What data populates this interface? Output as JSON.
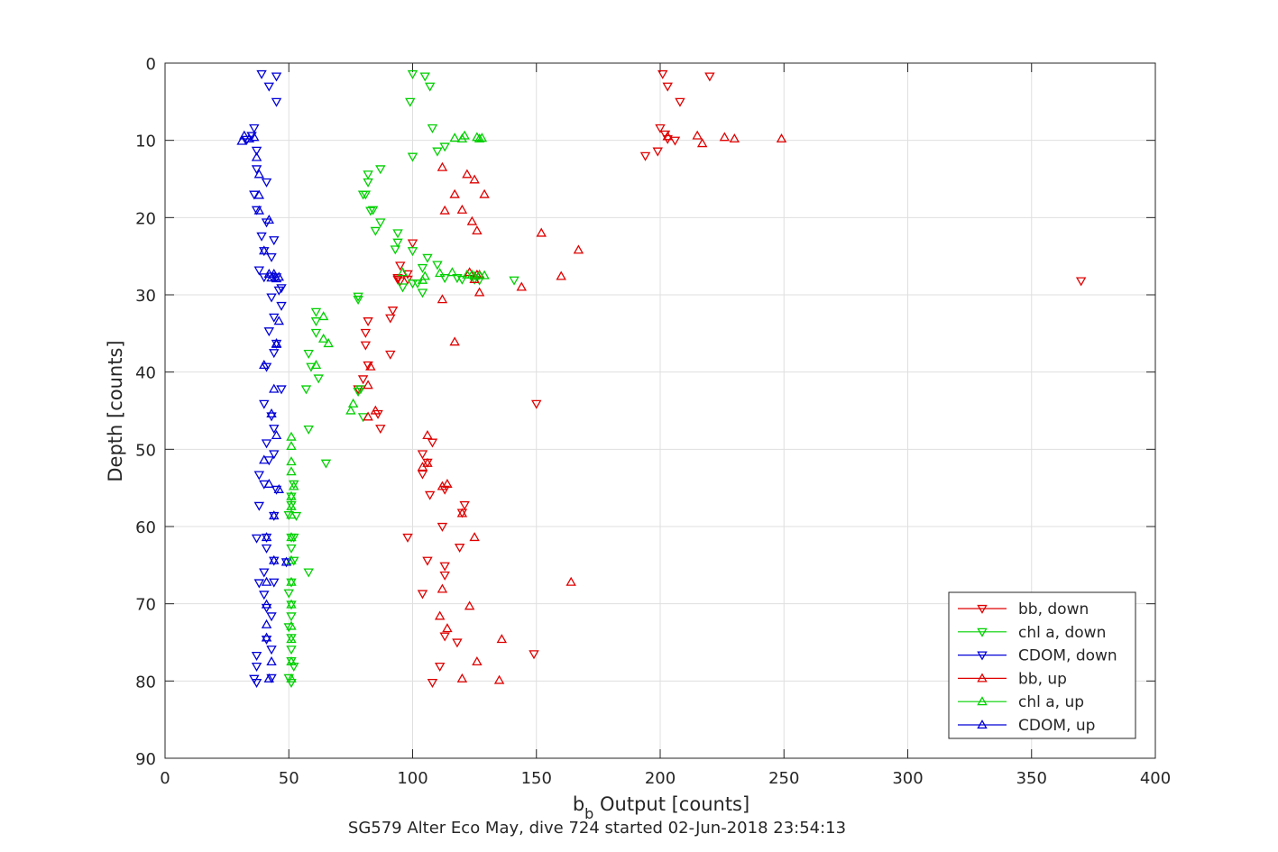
{
  "chart_data": {
    "type": "scatter",
    "xlabel": "b",
    "xlabel_sub": "b",
    "xlabel_rest": " Output [counts]",
    "ylabel": "Depth [counts]",
    "caption": "SG579 Alter Eco May, dive 724 started 02-Jun-2018 23:54:13",
    "xlim": [
      0,
      400
    ],
    "ylim": [
      0,
      90
    ],
    "y_reversed": true,
    "xticks": [
      0,
      50,
      100,
      150,
      200,
      250,
      300,
      350,
      400
    ],
    "yticks": [
      0,
      10,
      20,
      30,
      40,
      50,
      60,
      70,
      80,
      90
    ],
    "grid": true,
    "legend_position": "bottom-right",
    "series": [
      {
        "name": "bb, down",
        "color": "#e00000",
        "marker": "triangle-down",
        "points": [
          [
            201,
            1.4
          ],
          [
            220,
            1.7
          ],
          [
            203,
            3
          ],
          [
            208,
            5
          ],
          [
            200,
            8.4
          ],
          [
            202,
            9.2
          ],
          [
            203,
            9.8
          ],
          [
            206,
            10
          ],
          [
            199,
            11.4
          ],
          [
            194,
            12
          ],
          [
            94,
            28
          ],
          [
            95,
            28.2
          ],
          [
            370,
            28.2
          ],
          [
            94,
            27.8
          ],
          [
            98,
            27.3
          ],
          [
            95,
            26.2
          ],
          [
            100,
            23.3
          ],
          [
            98,
            28
          ],
          [
            92,
            32
          ],
          [
            91,
            33
          ],
          [
            82,
            33.4
          ],
          [
            81,
            34.9
          ],
          [
            81,
            36.5
          ],
          [
            91,
            37.7
          ],
          [
            82,
            39.1
          ],
          [
            80,
            40.9
          ],
          [
            78,
            42.2
          ],
          [
            86,
            45.4
          ],
          [
            87,
            47.3
          ],
          [
            108,
            49.1
          ],
          [
            106,
            51.7
          ],
          [
            104,
            53.2
          ],
          [
            107,
            55.9
          ],
          [
            98,
            61.4
          ],
          [
            106,
            64.4
          ],
          [
            113,
            65.1
          ],
          [
            104,
            68.7
          ],
          [
            113,
            74.2
          ],
          [
            118,
            75
          ],
          [
            111,
            78.1
          ],
          [
            108,
            80.2
          ],
          [
            104,
            50.6
          ],
          [
            113,
            55.2
          ],
          [
            121,
            57.2
          ],
          [
            112,
            60
          ],
          [
            119,
            62.7
          ],
          [
            113,
            66.3
          ],
          [
            120,
            58.2
          ],
          [
            150,
            44.1
          ],
          [
            149,
            76.5
          ]
        ]
      },
      {
        "name": "chl a, down",
        "color": "#00d000",
        "marker": "triangle-down",
        "points": [
          [
            100,
            1.4
          ],
          [
            105,
            1.7
          ],
          [
            107,
            3
          ],
          [
            99,
            5
          ],
          [
            108,
            8.4
          ],
          [
            100,
            12.1
          ],
          [
            110,
            11.4
          ],
          [
            113,
            10.8
          ],
          [
            87,
            13.7
          ],
          [
            82,
            14.4
          ],
          [
            82,
            15.4
          ],
          [
            80,
            17
          ],
          [
            81,
            17
          ],
          [
            83,
            19.1
          ],
          [
            84,
            19
          ],
          [
            87,
            20.6
          ],
          [
            85,
            21.7
          ],
          [
            94,
            22
          ],
          [
            94,
            23.2
          ],
          [
            100,
            24.3
          ],
          [
            93,
            24.1
          ],
          [
            106,
            25.2
          ],
          [
            110,
            26.1
          ],
          [
            104,
            26.5
          ],
          [
            113,
            27.8
          ],
          [
            118,
            27.8
          ],
          [
            100,
            28.5
          ],
          [
            96,
            29
          ],
          [
            104,
            29.7
          ],
          [
            78,
            30.2
          ],
          [
            78,
            30.6
          ],
          [
            61,
            32.2
          ],
          [
            61,
            33.4
          ],
          [
            61,
            34.9
          ],
          [
            58,
            37.6
          ],
          [
            59,
            39.3
          ],
          [
            62,
            40.8
          ],
          [
            57,
            42.2
          ],
          [
            78,
            42.5
          ],
          [
            79,
            42.2
          ],
          [
            80,
            45.8
          ],
          [
            58,
            47.4
          ],
          [
            65,
            51.8
          ],
          [
            52,
            54.5
          ],
          [
            51,
            56.1
          ],
          [
            51,
            57.2
          ],
          [
            50,
            58.5
          ],
          [
            53,
            58.6
          ],
          [
            51,
            61.4
          ],
          [
            52,
            61.4
          ],
          [
            51,
            62.8
          ],
          [
            52,
            64.4
          ],
          [
            58,
            65.9
          ],
          [
            51,
            67.2
          ],
          [
            50,
            68.6
          ],
          [
            51,
            70.1
          ],
          [
            51,
            71.6
          ],
          [
            50,
            73
          ],
          [
            51,
            74.4
          ],
          [
            51,
            75.9
          ],
          [
            51,
            77.4
          ],
          [
            52,
            78.1
          ],
          [
            50,
            79.6
          ],
          [
            51,
            80.2
          ],
          [
            125,
            28
          ],
          [
            127,
            28.1
          ],
          [
            141,
            28.1
          ],
          [
            120,
            28
          ],
          [
            102,
            28.5
          ]
        ]
      },
      {
        "name": "CDOM, down",
        "color": "#0000d8",
        "marker": "triangle-down",
        "points": [
          [
            39,
            1.4
          ],
          [
            45,
            1.7
          ],
          [
            42,
            3
          ],
          [
            45,
            5
          ],
          [
            36,
            8.4
          ],
          [
            35,
            9.4
          ],
          [
            33,
            9.9
          ],
          [
            37,
            11.3
          ],
          [
            37,
            13.7
          ],
          [
            41,
            15.4
          ],
          [
            36,
            17
          ],
          [
            37,
            19
          ],
          [
            41,
            20.6
          ],
          [
            39,
            22.4
          ],
          [
            44,
            22.9
          ],
          [
            40,
            24.3
          ],
          [
            43,
            25.1
          ],
          [
            38,
            26.8
          ],
          [
            45,
            27.7
          ],
          [
            40,
            27.7
          ],
          [
            43,
            27.6
          ],
          [
            47,
            29.1
          ],
          [
            46,
            29.4
          ],
          [
            43,
            30.3
          ],
          [
            47,
            31.4
          ],
          [
            44,
            32.9
          ],
          [
            42,
            34.7
          ],
          [
            45,
            36.3
          ],
          [
            44,
            37.5
          ],
          [
            41,
            39.3
          ],
          [
            47,
            42.2
          ],
          [
            40,
            44.1
          ],
          [
            43,
            45.7
          ],
          [
            44,
            47.3
          ],
          [
            41,
            49.2
          ],
          [
            44,
            50.6
          ],
          [
            42,
            51.4
          ],
          [
            38,
            53.3
          ],
          [
            40,
            54.5
          ],
          [
            45,
            55.2
          ],
          [
            38,
            57.3
          ],
          [
            44,
            58.6
          ],
          [
            37,
            61.5
          ],
          [
            41,
            61.4
          ],
          [
            41,
            62.8
          ],
          [
            44,
            64.4
          ],
          [
            40,
            65.9
          ],
          [
            38,
            67.3
          ],
          [
            44,
            67.2
          ],
          [
            40,
            68.8
          ],
          [
            41,
            70.5
          ],
          [
            43,
            71.6
          ],
          [
            41,
            74.6
          ],
          [
            43,
            75.9
          ],
          [
            37,
            76.7
          ],
          [
            37,
            78.1
          ],
          [
            43,
            79.6
          ],
          [
            37,
            80.2
          ],
          [
            36,
            79.7
          ],
          [
            49,
            64.6
          ]
        ]
      },
      {
        "name": "bb, up",
        "color": "#e00000",
        "marker": "triangle-up",
        "points": [
          [
            203,
            9.5
          ],
          [
            215,
            9.4
          ],
          [
            217,
            10.4
          ],
          [
            226,
            9.6
          ],
          [
            230,
            9.8
          ],
          [
            249,
            9.8
          ],
          [
            112,
            13.5
          ],
          [
            122,
            14.4
          ],
          [
            125,
            15.1
          ],
          [
            117,
            17
          ],
          [
            129,
            17
          ],
          [
            113,
            19.1
          ],
          [
            120,
            19
          ],
          [
            124,
            20.5
          ],
          [
            126,
            21.7
          ],
          [
            152,
            22
          ],
          [
            167,
            24.2
          ],
          [
            127,
            27.4
          ],
          [
            160,
            27.6
          ],
          [
            125,
            28
          ],
          [
            126,
            27.4
          ],
          [
            123,
            27.1
          ],
          [
            144,
            29
          ],
          [
            127,
            29.7
          ],
          [
            112,
            30.6
          ],
          [
            117,
            36.1
          ],
          [
            83,
            39.3
          ],
          [
            82,
            41.7
          ],
          [
            85,
            45
          ],
          [
            82,
            45.8
          ],
          [
            106,
            48.2
          ],
          [
            106,
            51.8
          ],
          [
            104,
            52.3
          ],
          [
            114,
            54.5
          ],
          [
            112,
            54.8
          ],
          [
            120,
            58.3
          ],
          [
            125,
            61.4
          ],
          [
            164,
            67.2
          ],
          [
            112,
            68.1
          ],
          [
            123,
            70.3
          ],
          [
            111,
            71.6
          ],
          [
            114,
            73.2
          ],
          [
            136,
            74.6
          ],
          [
            126,
            77.5
          ],
          [
            120,
            79.7
          ],
          [
            135,
            79.9
          ]
        ]
      },
      {
        "name": "chl a, up",
        "color": "#00d000",
        "marker": "triangle-up",
        "points": [
          [
            121,
            9.4
          ],
          [
            120,
            9.8
          ],
          [
            117,
            9.7
          ],
          [
            126,
            9.6
          ],
          [
            127,
            9.8
          ],
          [
            128,
            9.7
          ],
          [
            127,
            27.5
          ],
          [
            124,
            27.4
          ],
          [
            129,
            27.5
          ],
          [
            125,
            27.6
          ],
          [
            122,
            27.4
          ],
          [
            116,
            27.1
          ],
          [
            111,
            27.2
          ],
          [
            104,
            28.1
          ],
          [
            105,
            27.6
          ],
          [
            96,
            27.1
          ],
          [
            64,
            32.8
          ],
          [
            64,
            35.7
          ],
          [
            66,
            36.3
          ],
          [
            61,
            39.1
          ],
          [
            76,
            44.1
          ],
          [
            75,
            45
          ],
          [
            51,
            48.4
          ],
          [
            51,
            49.6
          ],
          [
            51,
            51.6
          ],
          [
            51,
            52.9
          ],
          [
            52,
            54.8
          ],
          [
            51,
            56.1
          ],
          [
            51,
            57.4
          ],
          [
            51,
            58.5
          ],
          [
            51,
            61.4
          ],
          [
            51,
            64.4
          ],
          [
            51,
            67.2
          ],
          [
            51,
            70.1
          ],
          [
            51,
            72.9
          ],
          [
            51,
            74.6
          ],
          [
            51,
            77.5
          ],
          [
            51,
            79.7
          ]
        ]
      },
      {
        "name": "CDOM, up",
        "color": "#0000d8",
        "marker": "triangle-up",
        "points": [
          [
            32,
            9.4
          ],
          [
            34,
            9.8
          ],
          [
            36,
            9.6
          ],
          [
            31,
            10.1
          ],
          [
            37,
            12.2
          ],
          [
            38,
            14.4
          ],
          [
            38,
            17.1
          ],
          [
            38,
            19.1
          ],
          [
            42,
            20.3
          ],
          [
            40,
            24.3
          ],
          [
            42,
            27.3
          ],
          [
            44,
            27.3
          ],
          [
            43,
            27.8
          ],
          [
            45,
            27.9
          ],
          [
            46,
            27.7
          ],
          [
            46,
            33.4
          ],
          [
            45,
            36.3
          ],
          [
            45,
            36.4
          ],
          [
            40,
            39.1
          ],
          [
            44,
            42.2
          ],
          [
            43,
            45.4
          ],
          [
            45,
            48.2
          ],
          [
            40,
            51.4
          ],
          [
            42,
            54.5
          ],
          [
            46,
            55.2
          ],
          [
            44,
            58.6
          ],
          [
            41,
            61.4
          ],
          [
            44,
            64.4
          ],
          [
            41,
            67.2
          ],
          [
            41,
            70.1
          ],
          [
            41,
            72.7
          ],
          [
            41,
            74.4
          ],
          [
            43,
            77.5
          ],
          [
            42,
            79.7
          ],
          [
            49,
            64.6
          ]
        ]
      }
    ]
  }
}
